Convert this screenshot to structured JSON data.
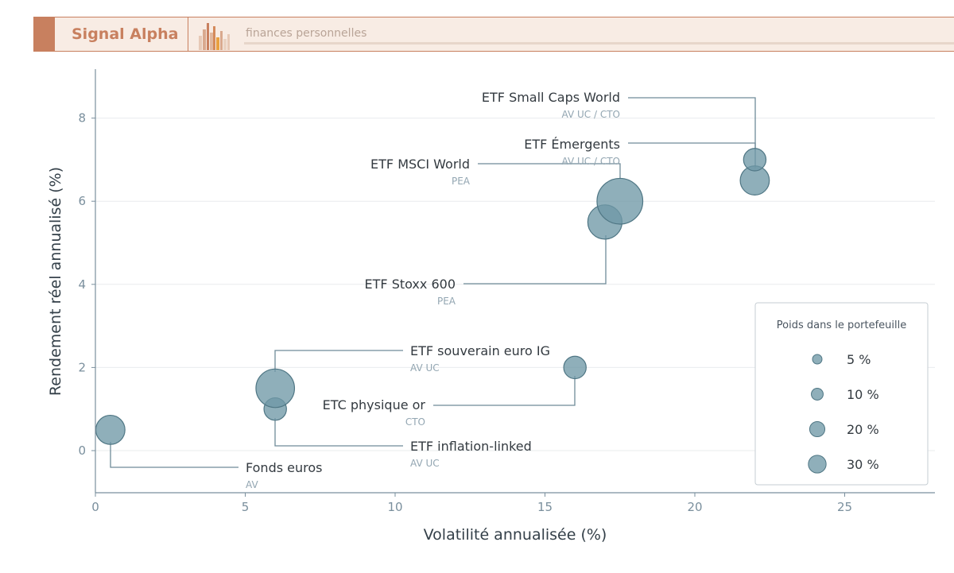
{
  "header": {
    "brand": "Signal Alpha",
    "tagline": "finances personnelles",
    "brand_color": "#c8805f",
    "logo_icon": "city-bars-icon"
  },
  "chart_data": {
    "type": "scatter",
    "xlabel": "Volatilité annualisée (%)",
    "ylabel": "Rendement réel annualisé (%)",
    "xlim": [
      0,
      28
    ],
    "ylim": [
      -1,
      9.2
    ],
    "xticks": [
      0,
      5,
      10,
      15,
      20,
      25
    ],
    "yticks": [
      0,
      2,
      4,
      6,
      8
    ],
    "grid": "horizontal",
    "marker_color": "#6f98a6",
    "points": [
      {
        "name": "Fonds euros",
        "sub": "AV",
        "x": 0.5,
        "y": 0.5,
        "weight": 20
      },
      {
        "name": "ETF inflation-linked",
        "sub": "AV UC",
        "x": 6,
        "y": 1.0,
        "weight": 10
      },
      {
        "name": "ETF souverain euro IG",
        "sub": "AV UC",
        "x": 6,
        "y": 1.5,
        "weight": 40
      },
      {
        "name": "ETC physique or",
        "sub": "CTO",
        "x": 16,
        "y": 2.0,
        "weight": 10
      },
      {
        "name": "ETF Stoxx 600",
        "sub": "PEA",
        "x": 17,
        "y": 5.5,
        "weight": 30
      },
      {
        "name": "ETF MSCI World",
        "sub": "PEA",
        "x": 17.5,
        "y": 6.0,
        "weight": 60
      },
      {
        "name": "ETF Émergents",
        "sub": "AV UC / CTO",
        "x": 22,
        "y": 6.5,
        "weight": 20
      },
      {
        "name": "ETF Small Caps World",
        "sub": "AV UC / CTO",
        "x": 22,
        "y": 7.0,
        "weight": 10
      }
    ],
    "legend": {
      "title": "Poids dans le portefeuille",
      "position": "bottom-right",
      "entries": [
        {
          "label": "5 %",
          "weight": 5
        },
        {
          "label": "10 %",
          "weight": 10
        },
        {
          "label": "20 %",
          "weight": 20
        },
        {
          "label": "30 %",
          "weight": 30
        }
      ]
    }
  }
}
